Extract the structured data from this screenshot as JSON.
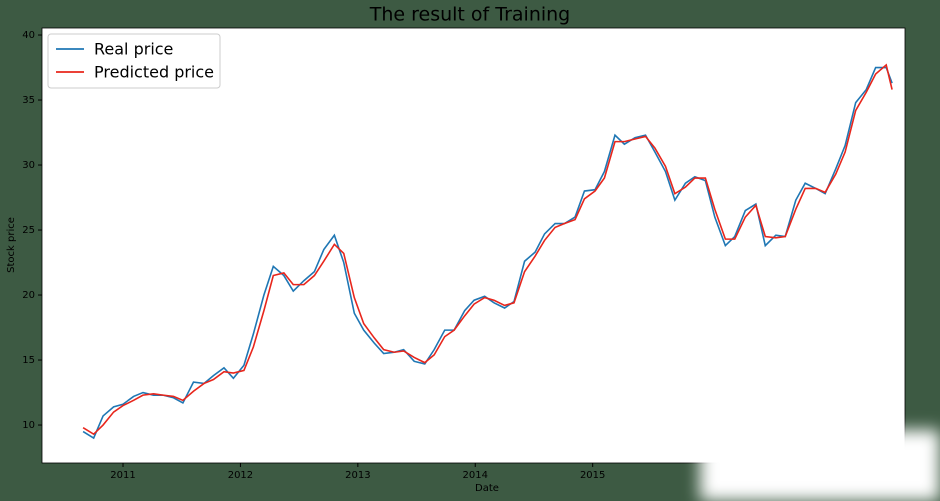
{
  "chart_data": {
    "type": "line",
    "title": "The result of Training",
    "xlabel": "Date",
    "ylabel": "Stock price",
    "x": [
      2010.66,
      2010.75,
      2010.83,
      2010.92,
      2011.0,
      2011.09,
      2011.17,
      2011.26,
      2011.34,
      2011.43,
      2011.51,
      2011.6,
      2011.69,
      2011.77,
      2011.86,
      2011.94,
      2012.03,
      2012.11,
      2012.2,
      2012.28,
      2012.37,
      2012.45,
      2012.54,
      2012.63,
      2012.71,
      2012.8,
      2012.88,
      2012.97,
      2013.05,
      2013.14,
      2013.22,
      2013.31,
      2013.39,
      2013.48,
      2013.57,
      2013.65,
      2013.74,
      2013.82,
      2013.91,
      2013.99,
      2014.08,
      2014.16,
      2014.25,
      2014.33,
      2014.42,
      2014.51,
      2014.59,
      2014.68,
      2014.76,
      2014.85,
      2014.93,
      2015.02,
      2015.1,
      2015.19,
      2015.27,
      2015.36,
      2015.45,
      2015.53,
      2015.62,
      2015.7,
      2015.79,
      2015.87,
      2015.96,
      2016.04,
      2016.13,
      2016.21,
      2016.3,
      2016.39,
      2016.47,
      2016.56,
      2016.64,
      2016.73,
      2016.81,
      2016.9,
      2016.98,
      2017.07,
      2017.15,
      2017.24,
      2017.33,
      2017.41,
      2017.5,
      2017.55
    ],
    "series": [
      {
        "name": "Real price",
        "color": "#1f77b4",
        "values": [
          9.5,
          9.0,
          10.7,
          11.4,
          11.6,
          12.2,
          12.5,
          12.3,
          12.3,
          12.1,
          11.7,
          13.3,
          13.2,
          13.8,
          14.4,
          13.6,
          14.6,
          17.0,
          20.0,
          22.2,
          21.5,
          20.3,
          21.1,
          21.8,
          23.5,
          24.6,
          22.5,
          18.6,
          17.3,
          16.3,
          15.5,
          15.6,
          15.8,
          14.9,
          14.7,
          15.8,
          17.3,
          17.3,
          18.8,
          19.6,
          19.9,
          19.4,
          19.0,
          19.5,
          22.6,
          23.3,
          24.7,
          25.5,
          25.5,
          26.0,
          28.0,
          28.1,
          29.5,
          32.3,
          31.6,
          32.1,
          32.3,
          31.0,
          29.5,
          27.3,
          28.6,
          29.1,
          28.8,
          26.0,
          23.8,
          24.5,
          26.5,
          27.0,
          23.8,
          24.6,
          24.5,
          27.3,
          28.6,
          28.2,
          27.8,
          29.7,
          31.5,
          34.8,
          35.8,
          37.5,
          37.5,
          36.3
        ]
      },
      {
        "name": "Predicted price",
        "color": "#e8261c",
        "values": [
          9.8,
          9.3,
          10.0,
          11.0,
          11.5,
          11.9,
          12.3,
          12.4,
          12.3,
          12.2,
          11.9,
          12.6,
          13.2,
          13.5,
          14.1,
          14.0,
          14.2,
          16.0,
          18.8,
          21.5,
          21.7,
          20.8,
          20.8,
          21.5,
          22.6,
          23.9,
          23.2,
          19.8,
          17.8,
          16.7,
          15.8,
          15.6,
          15.7,
          15.2,
          14.8,
          15.4,
          16.8,
          17.3,
          18.4,
          19.3,
          19.8,
          19.6,
          19.2,
          19.4,
          21.8,
          23.0,
          24.2,
          25.2,
          25.5,
          25.8,
          27.4,
          28.0,
          29.0,
          31.8,
          31.8,
          32.0,
          32.2,
          31.3,
          29.9,
          27.8,
          28.3,
          29.0,
          29.0,
          26.6,
          24.3,
          24.3,
          26.0,
          26.9,
          24.5,
          24.4,
          24.5,
          26.6,
          28.2,
          28.2,
          27.9,
          29.3,
          31.0,
          34.2,
          35.6,
          37.0,
          37.7,
          35.8
        ]
      }
    ],
    "xlim": [
      2010.31,
      2017.66
    ],
    "xticks": [
      2011,
      2012,
      2013,
      2014,
      2015
    ],
    "ylim": [
      7.08,
      40.54
    ],
    "yticks": [
      10,
      15,
      20,
      25,
      30,
      35,
      40
    ],
    "legend": "upper left"
  }
}
